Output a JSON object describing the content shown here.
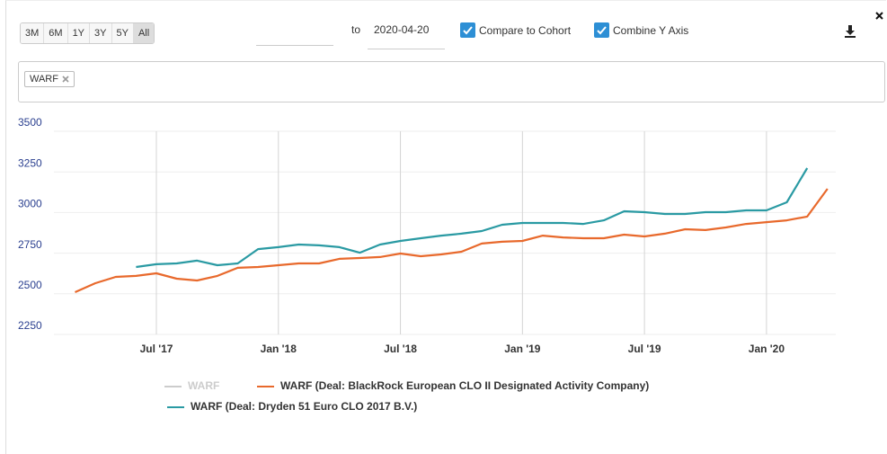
{
  "toolbar": {
    "ranges": [
      "3M",
      "6M",
      "1Y",
      "3Y",
      "5Y",
      "All"
    ],
    "selected": "All",
    "to_label": "to",
    "end_date": "2020-04-20",
    "checkboxes": [
      {
        "label": "Compare to Cohort",
        "checked": true
      },
      {
        "label": "Combine Y Axis",
        "checked": true
      }
    ]
  },
  "filter": {
    "tags": [
      "WARF"
    ]
  },
  "chart_data": {
    "type": "line",
    "x": [
      "2017-03",
      "2017-04",
      "2017-05",
      "2017-06",
      "2017-07",
      "2017-08",
      "2017-09",
      "2017-10",
      "2017-11",
      "2017-12",
      "2018-01",
      "2018-02",
      "2018-03",
      "2018-04",
      "2018-05",
      "2018-06",
      "2018-07",
      "2018-08",
      "2018-09",
      "2018-10",
      "2018-11",
      "2018-12",
      "2019-01",
      "2019-02",
      "2019-03",
      "2019-04",
      "2019-05",
      "2019-06",
      "2019-07",
      "2019-08",
      "2019-09",
      "2019-10",
      "2019-11",
      "2019-12",
      "2020-01",
      "2020-02",
      "2020-03",
      "2020-04"
    ],
    "series": [
      {
        "name": "WARF",
        "color": "#cccccc",
        "visible": false
      },
      {
        "name": "WARF (Deal: BlackRock European CLO II Designated Activity Company)",
        "color": "#e8692c",
        "values": [
          2510,
          2565,
          2604,
          2610,
          2626,
          2593,
          2582,
          2610,
          2660,
          2665,
          2676,
          2687,
          2687,
          2715,
          2720,
          2726,
          2748,
          2731,
          2742,
          2759,
          2809,
          2820,
          2825,
          2858,
          2847,
          2842,
          2842,
          2864,
          2853,
          2870,
          2897,
          2892,
          2908,
          2930,
          2941,
          2952,
          2975,
          3146
        ]
      },
      {
        "name": "WARF (Deal: Dryden 51 Euro CLO 2017 B.V.)",
        "color": "#2a9aa3",
        "values": [
          null,
          null,
          null,
          2665,
          2682,
          2687,
          2704,
          2676,
          2687,
          2775,
          2787,
          2803,
          2798,
          2787,
          2753,
          2803,
          2825,
          2842,
          2858,
          2870,
          2886,
          2925,
          2936,
          2936,
          2936,
          2930,
          2952,
          3008,
          3002,
          2991,
          2991,
          3002,
          3002,
          3013,
          3013,
          3063,
          3273,
          null
        ]
      }
    ],
    "ylim": [
      2250,
      3500
    ],
    "yticks": [
      2250,
      2500,
      2750,
      3000,
      3250,
      3500
    ],
    "xticks": [
      {
        "value": "2017-07",
        "label": "Jul '17"
      },
      {
        "value": "2018-01",
        "label": "Jan '18"
      },
      {
        "value": "2018-07",
        "label": "Jul '18"
      },
      {
        "value": "2019-01",
        "label": "Jan '19"
      },
      {
        "value": "2019-07",
        "label": "Jul '19"
      },
      {
        "value": "2020-01",
        "label": "Jan '20"
      }
    ],
    "grid": true
  }
}
